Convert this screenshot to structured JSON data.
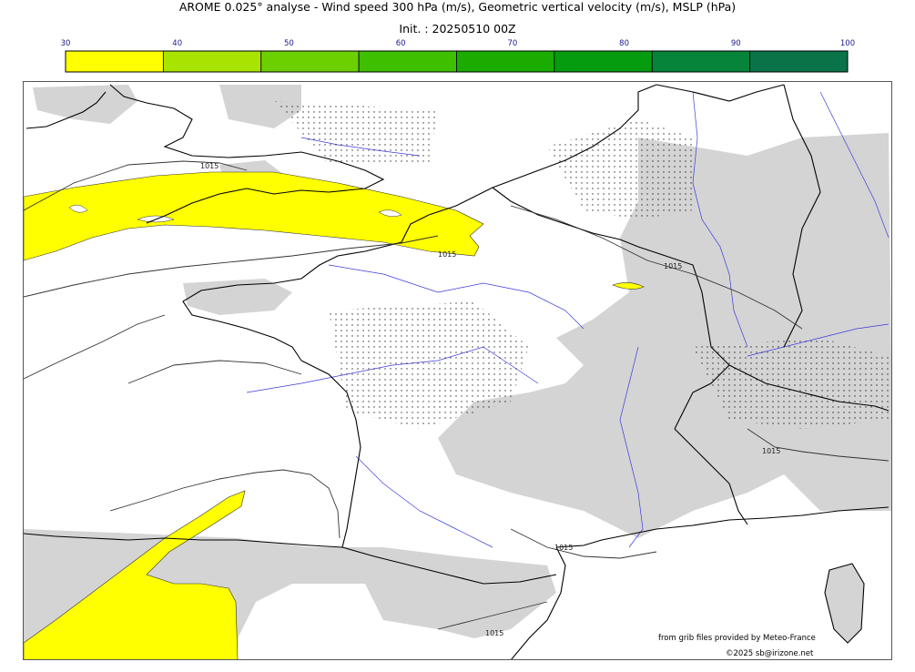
{
  "header": {
    "title": "AROME 0.025° analyse - Wind speed 300 hPa (m/s), Geometric vertical velocity (m/s), MSLP (hPa)",
    "init": "Init. : 20250510 00Z"
  },
  "colorbar": {
    "ticks": [
      "30",
      "40",
      "50",
      "60",
      "70",
      "80",
      "90",
      "100"
    ],
    "colors": [
      "#ffff00",
      "#a8e400",
      "#6cd000",
      "#3ec000",
      "#1aac00",
      "#069c10",
      "#05843a",
      "#0a7348"
    ]
  },
  "map": {
    "isobar_labels": [
      "1015",
      "1015",
      "1015",
      "1015",
      "1015",
      "1015"
    ],
    "colors": {
      "jet": "#ffff00",
      "vertical_velocity": "#d4d4d4",
      "coastline": "#000000",
      "rivers": "#3b3bdd",
      "isobars": "#333333"
    }
  },
  "credits": {
    "source": "from grib files provided by Meteo-France",
    "copyright": "©2025 sb@irizone.net"
  }
}
